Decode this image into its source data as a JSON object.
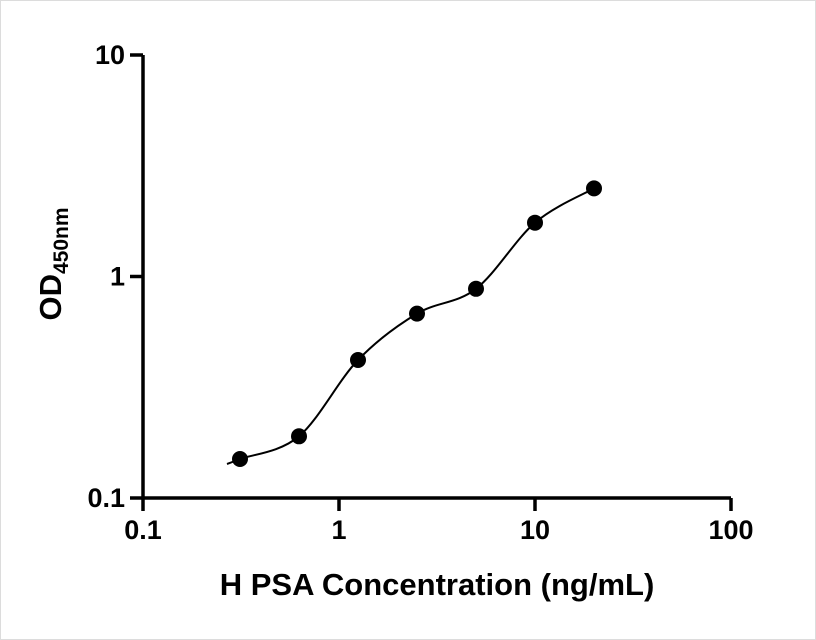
{
  "figure": {
    "background_color": "#ffffff",
    "border_color": "#dcdcdc"
  },
  "chart_data": {
    "type": "scatter",
    "title": "",
    "xlabel": "H PSA Concentration (ng/mL)",
    "ylabel": {
      "main": "OD",
      "sub": "450nm"
    },
    "x": [
      0.3125,
      0.625,
      1.25,
      2.5,
      5,
      10,
      20
    ],
    "y": [
      0.15,
      0.19,
      0.42,
      0.68,
      0.88,
      1.75,
      2.5
    ],
    "x_scale": "log10",
    "y_scale": "log10",
    "xlim": [
      0.1,
      100
    ],
    "ylim": [
      0.1,
      10
    ],
    "x_ticks": [
      0.1,
      1,
      10,
      100
    ],
    "x_tick_labels": [
      "0.1",
      "1",
      "10",
      "100"
    ],
    "y_ticks": [
      0.1,
      1,
      10
    ],
    "y_tick_labels": [
      "0.1",
      "1",
      "10"
    ],
    "grid": false,
    "legend": false,
    "fit_line": true,
    "marker_shape": "circle",
    "marker_color": "#000000",
    "line_color": "#000000",
    "axis_color": "#000000"
  }
}
